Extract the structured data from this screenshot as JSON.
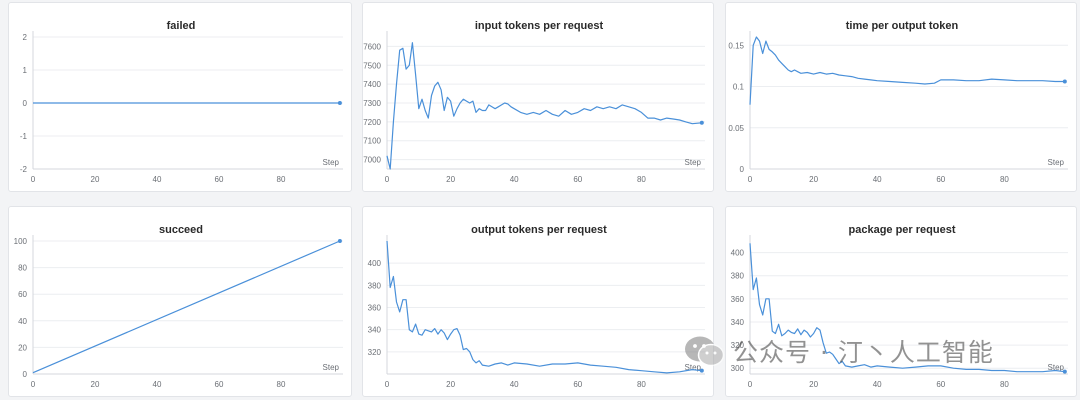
{
  "colors": {
    "line": "#4a90d9",
    "grid": "#eceef1"
  },
  "watermark": {
    "text": "公众号 · 汀丶人工智能"
  },
  "chart_data": [
    {
      "type": "line",
      "title": "failed",
      "xlabel": "Step",
      "xlim": [
        0,
        100
      ],
      "ylim": [
        -2,
        2
      ],
      "xticks": [
        0,
        20,
        40,
        60,
        80
      ],
      "yticks": [
        -2,
        -1,
        0,
        1,
        2
      ],
      "ytick_labels": [
        "-2",
        "-1",
        "0",
        "1",
        "2"
      ],
      "x": [
        0,
        99
      ],
      "y": [
        0,
        0
      ]
    },
    {
      "type": "line",
      "title": "input tokens per request",
      "xlabel": "Step",
      "xlim": [
        0,
        100
      ],
      "ylim": [
        6950,
        7650
      ],
      "xticks": [
        0,
        20,
        40,
        60,
        80
      ],
      "yticks": [
        7000,
        7100,
        7200,
        7300,
        7400,
        7500,
        7600
      ],
      "ytick_labels": [
        "7000",
        "7100",
        "7200",
        "7300",
        "7400",
        "7500",
        "7600"
      ],
      "x": [
        0,
        1,
        2,
        3,
        4,
        5,
        6,
        7,
        8,
        9,
        10,
        11,
        12,
        13,
        14,
        15,
        16,
        17,
        18,
        19,
        20,
        21,
        22,
        23,
        24,
        25,
        26,
        27,
        28,
        29,
        30,
        31,
        32,
        33,
        34,
        35,
        36,
        37,
        38,
        39,
        40,
        42,
        44,
        46,
        48,
        50,
        52,
        54,
        56,
        58,
        60,
        62,
        64,
        66,
        68,
        70,
        72,
        74,
        76,
        78,
        80,
        82,
        84,
        86,
        88,
        90,
        92,
        94,
        96,
        99
      ],
      "y": [
        7020,
        6950,
        7200,
        7400,
        7580,
        7590,
        7480,
        7500,
        7620,
        7450,
        7270,
        7320,
        7260,
        7220,
        7340,
        7390,
        7410,
        7370,
        7260,
        7330,
        7310,
        7230,
        7270,
        7300,
        7320,
        7310,
        7300,
        7310,
        7250,
        7270,
        7260,
        7260,
        7290,
        7280,
        7270,
        7280,
        7290,
        7300,
        7295,
        7280,
        7270,
        7250,
        7240,
        7250,
        7240,
        7260,
        7240,
        7230,
        7260,
        7240,
        7250,
        7270,
        7260,
        7280,
        7270,
        7280,
        7270,
        7290,
        7280,
        7270,
        7250,
        7220,
        7220,
        7210,
        7220,
        7215,
        7210,
        7200,
        7190,
        7195
      ]
    },
    {
      "type": "line",
      "title": "time per output token",
      "xlabel": "Step",
      "xlim": [
        0,
        100
      ],
      "ylim": [
        0,
        0.16
      ],
      "xticks": [
        0,
        20,
        40,
        60,
        80
      ],
      "yticks": [
        0,
        0.05,
        0.1,
        0.15
      ],
      "ytick_labels": [
        "0",
        "0.05",
        "0.1",
        "0.15"
      ],
      "x": [
        0,
        1,
        2,
        3,
        4,
        5,
        6,
        7,
        8,
        9,
        10,
        11,
        12,
        13,
        14,
        15,
        16,
        18,
        20,
        22,
        24,
        26,
        28,
        30,
        32,
        34,
        36,
        38,
        40,
        44,
        48,
        52,
        55,
        58,
        60,
        64,
        68,
        72,
        76,
        80,
        84,
        88,
        92,
        96,
        99
      ],
      "y": [
        0.078,
        0.15,
        0.16,
        0.155,
        0.14,
        0.155,
        0.145,
        0.142,
        0.138,
        0.132,
        0.128,
        0.124,
        0.12,
        0.118,
        0.12,
        0.118,
        0.116,
        0.117,
        0.115,
        0.117,
        0.115,
        0.116,
        0.114,
        0.113,
        0.112,
        0.11,
        0.109,
        0.108,
        0.107,
        0.106,
        0.105,
        0.104,
        0.103,
        0.104,
        0.108,
        0.108,
        0.107,
        0.107,
        0.109,
        0.108,
        0.107,
        0.107,
        0.107,
        0.106,
        0.106
      ]
    },
    {
      "type": "line",
      "title": "succeed",
      "xlabel": "Step",
      "xlim": [
        0,
        100
      ],
      "ylim": [
        0,
        100
      ],
      "xticks": [
        0,
        20,
        40,
        60,
        80
      ],
      "yticks": [
        0,
        20,
        40,
        60,
        80,
        100
      ],
      "ytick_labels": [
        "0",
        "20",
        "40",
        "60",
        "80",
        "100"
      ],
      "x": [
        0,
        99
      ],
      "y": [
        1,
        100
      ]
    },
    {
      "type": "line",
      "title": "output tokens per request",
      "xlabel": "Step",
      "xlim": [
        0,
        100
      ],
      "ylim": [
        300,
        420
      ],
      "xticks": [
        0,
        20,
        40,
        60,
        80
      ],
      "yticks": [
        320,
        340,
        360,
        380,
        400
      ],
      "ytick_labels": [
        "320",
        "340",
        "360",
        "380",
        "400"
      ],
      "x": [
        0,
        1,
        2,
        3,
        4,
        5,
        6,
        7,
        8,
        9,
        10,
        11,
        12,
        13,
        14,
        15,
        16,
        17,
        18,
        19,
        20,
        21,
        22,
        23,
        24,
        25,
        26,
        27,
        28,
        29,
        30,
        32,
        34,
        36,
        38,
        40,
        44,
        48,
        52,
        56,
        60,
        64,
        68,
        72,
        76,
        80,
        84,
        88,
        92,
        96,
        99
      ],
      "y": [
        420,
        378,
        388,
        365,
        356,
        367,
        367,
        340,
        338,
        345,
        336,
        335,
        340,
        339,
        338,
        341,
        336,
        340,
        337,
        331,
        336,
        340,
        341,
        335,
        322,
        323,
        320,
        313,
        310,
        312,
        308,
        307,
        309,
        310,
        308,
        310,
        309,
        307,
        309,
        309,
        310,
        308,
        307,
        306,
        304,
        303,
        302,
        301,
        302,
        304,
        303
      ]
    },
    {
      "type": "line",
      "title": "package per request",
      "xlabel": "Step",
      "xlim": [
        0,
        100
      ],
      "ylim": [
        295,
        410
      ],
      "xticks": [
        0,
        20,
        40,
        60,
        80
      ],
      "yticks": [
        300,
        320,
        340,
        360,
        380,
        400
      ],
      "ytick_labels": [
        "300",
        "320",
        "340",
        "360",
        "380",
        "400"
      ],
      "x": [
        0,
        1,
        2,
        3,
        4,
        5,
        6,
        7,
        8,
        9,
        10,
        11,
        12,
        13,
        14,
        15,
        16,
        17,
        18,
        19,
        20,
        21,
        22,
        23,
        24,
        25,
        26,
        27,
        28,
        29,
        30,
        32,
        34,
        36,
        38,
        40,
        44,
        48,
        52,
        56,
        60,
        64,
        68,
        72,
        76,
        80,
        84,
        88,
        92,
        96,
        99
      ],
      "y": [
        408,
        368,
        378,
        355,
        346,
        360,
        360,
        332,
        330,
        338,
        328,
        330,
        333,
        331,
        330,
        334,
        329,
        333,
        331,
        327,
        330,
        335,
        333,
        322,
        313,
        314,
        312,
        308,
        304,
        306,
        302,
        301,
        302,
        303,
        301,
        302,
        301,
        300,
        301,
        302,
        302,
        300,
        299,
        299,
        298,
        298,
        297,
        297,
        297,
        298,
        297
      ]
    }
  ]
}
